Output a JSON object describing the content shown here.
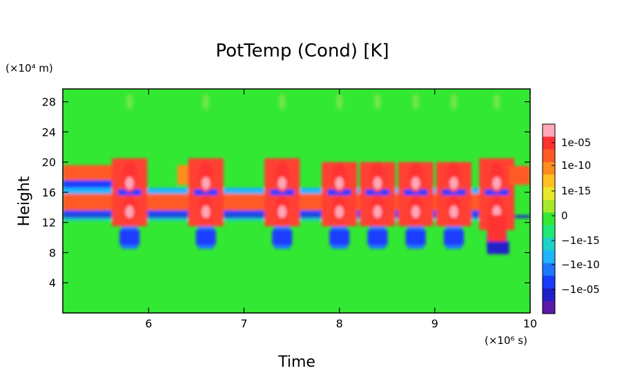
{
  "chart_data": {
    "type": "heatmap",
    "title": "PotTemp (Cond) [K]",
    "xlabel": "Time",
    "ylabel": "Height",
    "x_unit": "(×10⁶ s)",
    "y_unit": "(×10⁴ m)",
    "xlim": [
      5.1,
      10
    ],
    "ylim": [
      0,
      29.7
    ],
    "x_ticks": [
      6,
      7,
      8,
      9,
      10
    ],
    "y_ticks": [
      4,
      8,
      12,
      16,
      20,
      24,
      28
    ],
    "colorbar": {
      "labels": [
        "1e-05",
        "1e-10",
        "1e-15",
        "0",
        "−1e-15",
        "−1e-10",
        "−1e-05"
      ],
      "colors": [
        "#ffa8b8",
        "#ff3030",
        "#ff5a28",
        "#ff8c1e",
        "#ffc020",
        "#e8e82a",
        "#a8e82a",
        "#33e833",
        "#1ee87a",
        "#1ed2c8",
        "#1eb4ff",
        "#1e78ff",
        "#1a3cff",
        "#2020c8",
        "#5a1aa8"
      ]
    },
    "background_value": "0",
    "events": [
      {
        "time": 5.8,
        "band_low": [
          8.5,
          16.5
        ],
        "band_high": [
          11.5,
          20.5
        ]
      },
      {
        "time": 6.6,
        "band_low": [
          8.5,
          16.5
        ],
        "band_high": [
          11.5,
          20.5
        ]
      },
      {
        "time": 7.4,
        "band_low": [
          8.5,
          16.5
        ],
        "band_high": [
          11.5,
          20.5
        ]
      },
      {
        "time": 8.0,
        "band_low": [
          8.5,
          16.5
        ],
        "band_high": [
          11.5,
          20.0
        ]
      },
      {
        "time": 8.4,
        "band_low": [
          8.5,
          16.5
        ],
        "band_high": [
          11.5,
          20.0
        ]
      },
      {
        "time": 8.8,
        "band_low": [
          8.5,
          16.5
        ],
        "band_high": [
          11.5,
          20.0
        ]
      },
      {
        "time": 9.2,
        "band_low": [
          8.5,
          16.5
        ],
        "band_high": [
          11.5,
          20.0
        ]
      },
      {
        "time": 9.65,
        "band_low": [
          8.0,
          16.5
        ],
        "band_high": [
          11.0,
          20.5
        ]
      }
    ]
  }
}
